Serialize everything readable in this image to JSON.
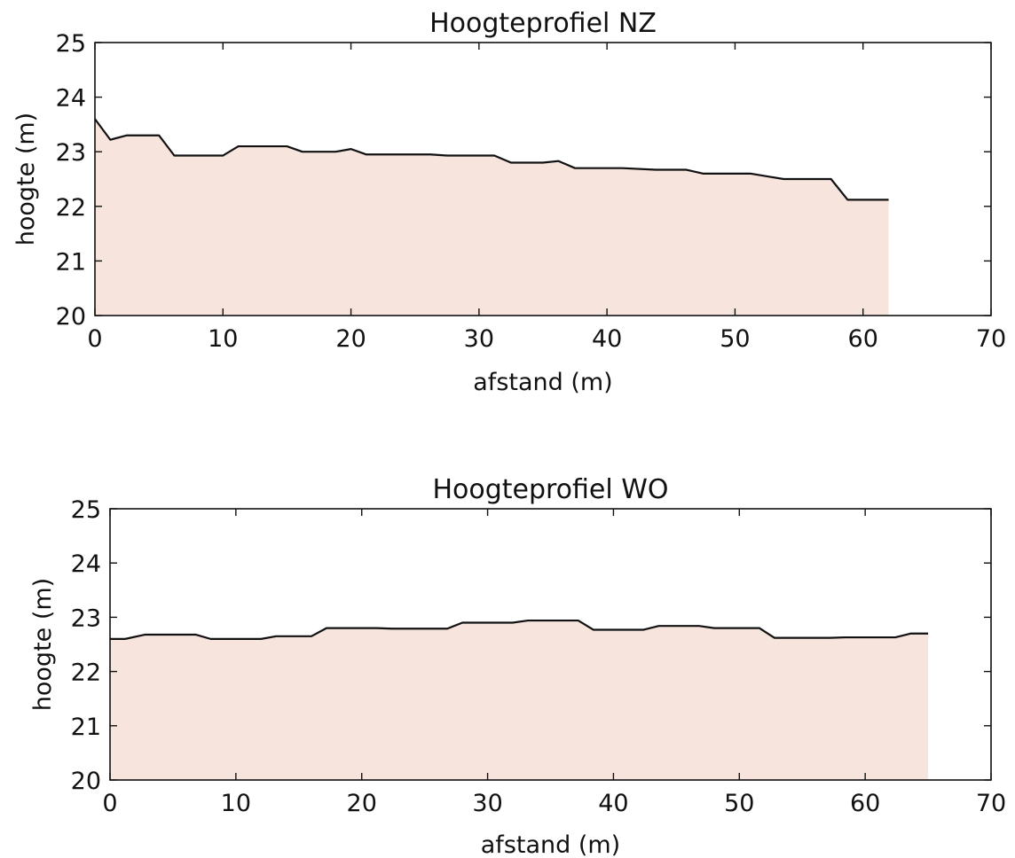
{
  "colors": {
    "fill": "#f6e4dd",
    "line": "#111111",
    "axis": "#111111",
    "background": "#ffffff"
  },
  "chart_data": [
    {
      "type": "area",
      "title": "Hoogteprofiel NZ",
      "xlabel": "afstand (m)",
      "ylabel": "hoogte (m)",
      "xlim": [
        0,
        70
      ],
      "ylim": [
        20,
        25
      ],
      "xticks": [
        "0",
        "10",
        "20",
        "30",
        "40",
        "50",
        "60",
        "70"
      ],
      "yticks": [
        "20",
        "21",
        "22",
        "23",
        "24",
        "25"
      ],
      "grid": false,
      "x": [
        0,
        1.2,
        2.5,
        5.0,
        6.2,
        10.0,
        11.2,
        15.0,
        16.2,
        18.8,
        20.0,
        21.2,
        26.2,
        27.5,
        31.2,
        32.5,
        35.0,
        36.2,
        37.5,
        41.2,
        43.8,
        46.2,
        47.5,
        51.2,
        52.5,
        53.8,
        55.0,
        57.5,
        58.8,
        62.0
      ],
      "y": [
        23.6,
        23.22,
        23.3,
        23.3,
        22.93,
        22.93,
        23.1,
        23.1,
        23.0,
        23.0,
        23.05,
        22.95,
        22.95,
        22.93,
        22.93,
        22.8,
        22.8,
        22.83,
        22.7,
        22.7,
        22.67,
        22.67,
        22.6,
        22.6,
        22.55,
        22.5,
        22.5,
        22.5,
        22.12,
        22.12
      ]
    },
    {
      "type": "area",
      "title": "Hoogteprofiel WO",
      "xlabel": "afstand (m)",
      "ylabel": "hoogte (m)",
      "xlim": [
        0,
        70
      ],
      "ylim": [
        20,
        25
      ],
      "xticks": [
        "0",
        "10",
        "20",
        "30",
        "40",
        "50",
        "60",
        "70"
      ],
      "yticks": [
        "20",
        "21",
        "22",
        "23",
        "24",
        "25"
      ],
      "grid": false,
      "x": [
        0,
        1.2,
        2.8,
        6.8,
        8.0,
        12.0,
        13.2,
        16.0,
        17.2,
        21.2,
        22.4,
        26.8,
        28.0,
        32.0,
        33.2,
        37.2,
        38.4,
        42.4,
        43.6,
        46.8,
        48.0,
        51.6,
        52.8,
        57.2,
        58.4,
        62.4,
        63.6,
        65.0
      ],
      "y": [
        22.6,
        22.6,
        22.68,
        22.68,
        22.6,
        22.6,
        22.65,
        22.65,
        22.8,
        22.8,
        22.79,
        22.79,
        22.9,
        22.9,
        22.94,
        22.94,
        22.77,
        22.77,
        22.84,
        22.84,
        22.8,
        22.8,
        22.62,
        22.62,
        22.63,
        22.63,
        22.7,
        22.7
      ]
    }
  ]
}
